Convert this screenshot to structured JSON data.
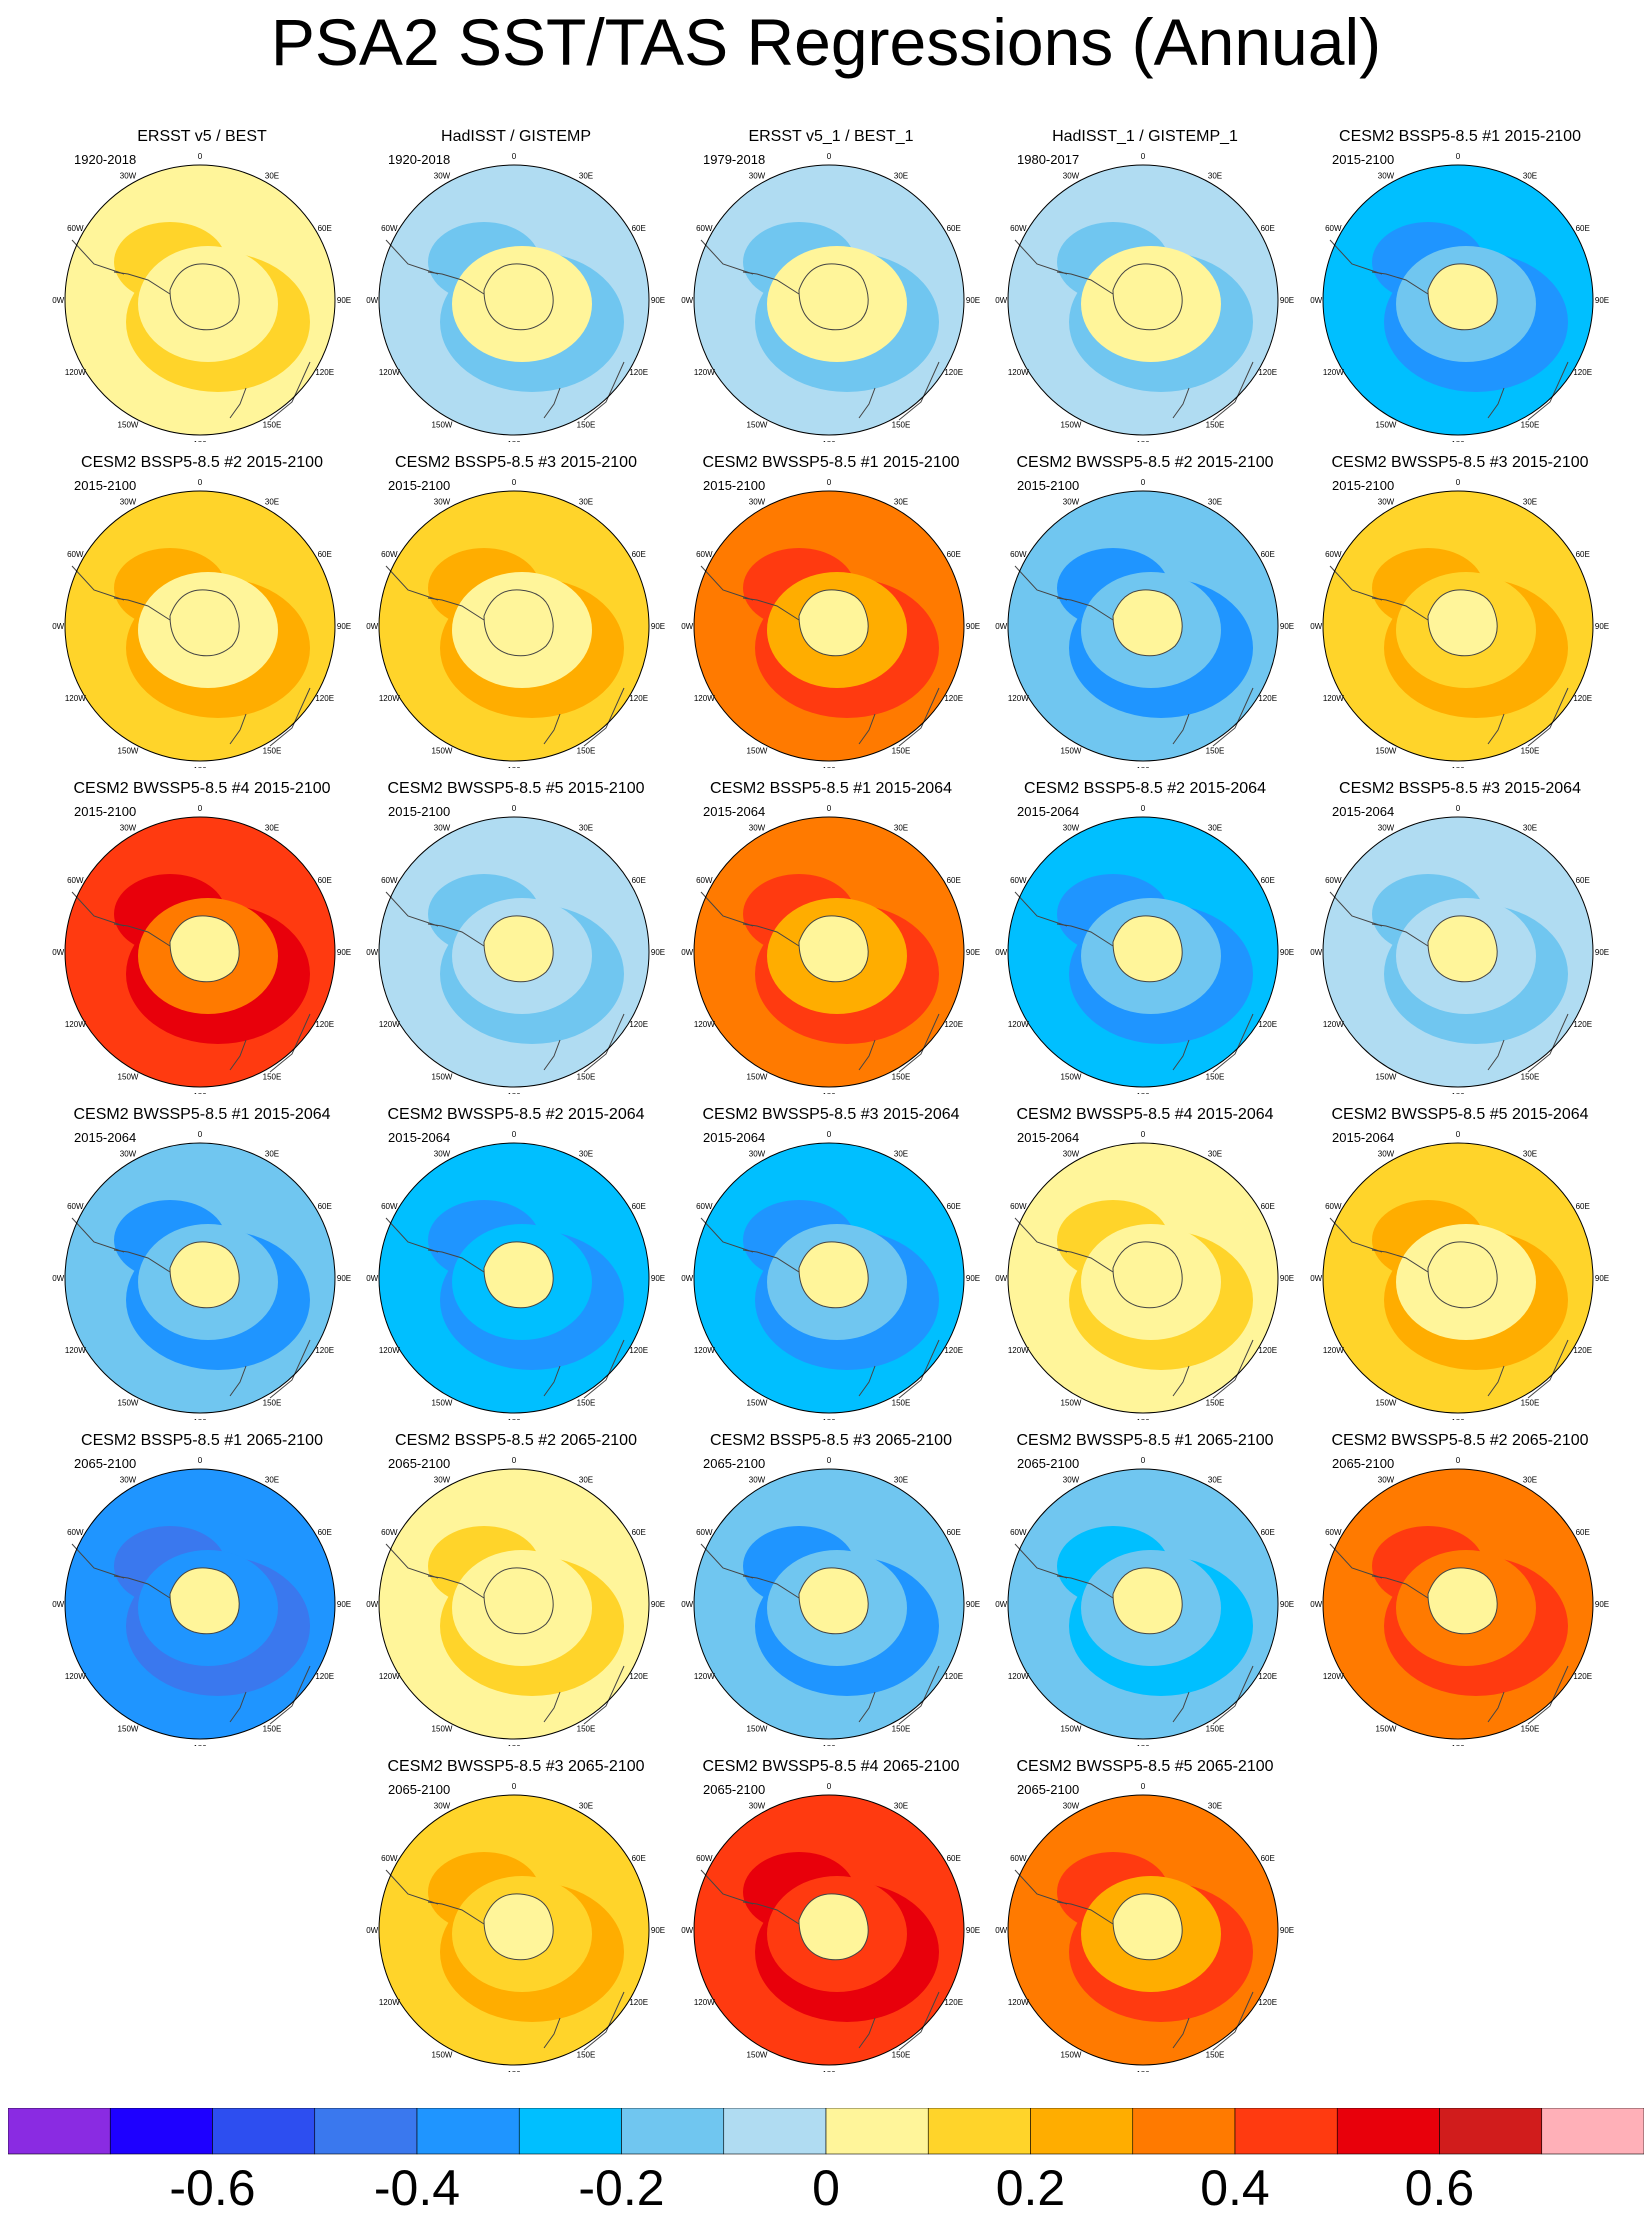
{
  "title": "PSA2 SST/TAS Regressions (Annual)",
  "lon_labels": [
    "0",
    "30E",
    "60E",
    "90E",
    "120E",
    "150E",
    "180",
    "150W",
    "120W",
    "90W",
    "60W",
    "30W"
  ],
  "chart_data": {
    "type": "heatmap",
    "projection": "south-polar-stereographic",
    "panels": [
      {
        "title": "ERSST v5 / BEST",
        "period": "1920-2018",
        "mean_value": 0.05
      },
      {
        "title": "HadISST / GISTEMP",
        "period": "1920-2018",
        "mean_value": -0.03
      },
      {
        "title": "ERSST v5_1 / BEST_1",
        "period": "1979-2018",
        "mean_value": -0.02
      },
      {
        "title": "HadISST_1 / GISTEMP_1",
        "period": "1980-2017",
        "mean_value": -0.01
      },
      {
        "title": "CESM2 BSSP5-8.5 #1 2015-2100",
        "period": "2015-2100",
        "mean_value": -0.25
      },
      {
        "title": "CESM2 BSSP5-8.5 #2 2015-2100",
        "period": "2015-2100",
        "mean_value": 0.1
      },
      {
        "title": "CESM2 BSSP5-8.5 #3 2015-2100",
        "period": "2015-2100",
        "mean_value": 0.15
      },
      {
        "title": "CESM2 BWSSP5-8.5 #1 2015-2100",
        "period": "2015-2100",
        "mean_value": 0.32
      },
      {
        "title": "CESM2 BWSSP5-8.5 #2 2015-2100",
        "period": "2015-2100",
        "mean_value": -0.2
      },
      {
        "title": "CESM2 BWSSP5-8.5 #3 2015-2100",
        "period": "2015-2100",
        "mean_value": 0.18
      },
      {
        "title": "CESM2 BWSSP5-8.5 #4 2015-2100",
        "period": "2015-2100",
        "mean_value": 0.42
      },
      {
        "title": "CESM2 BWSSP5-8.5 #5 2015-2100",
        "period": "2015-2100",
        "mean_value": -0.1
      },
      {
        "title": "CESM2 BSSP5-8.5 #1 2015-2064",
        "period": "2015-2064",
        "mean_value": 0.3
      },
      {
        "title": "CESM2 BSSP5-8.5 #2 2015-2064",
        "period": "2015-2064",
        "mean_value": -0.25
      },
      {
        "title": "CESM2 BSSP5-8.5 #3 2015-2064",
        "period": "2015-2064",
        "mean_value": -0.08
      },
      {
        "title": "CESM2 BWSSP5-8.5 #1 2015-2064",
        "period": "2015-2064",
        "mean_value": -0.2
      },
      {
        "title": "CESM2 BWSSP5-8.5 #2 2015-2064",
        "period": "2015-2064",
        "mean_value": -0.3
      },
      {
        "title": "CESM2 BWSSP5-8.5 #3 2015-2064",
        "period": "2015-2064",
        "mean_value": -0.25
      },
      {
        "title": "CESM2 BWSSP5-8.5 #4 2015-2064",
        "period": "2015-2064",
        "mean_value": 0.05
      },
      {
        "title": "CESM2 BWSSP5-8.5 #5 2015-2064",
        "period": "2015-2064",
        "mean_value": 0.15
      },
      {
        "title": "CESM2 BSSP5-8.5 #1 2065-2100",
        "period": "2065-2100",
        "mean_value": -0.38
      },
      {
        "title": "CESM2 BSSP5-8.5 #2 2065-2100",
        "period": "2065-2100",
        "mean_value": 0.05
      },
      {
        "title": "CESM2 BSSP5-8.5 #3 2065-2100",
        "period": "2065-2100",
        "mean_value": -0.2
      },
      {
        "title": "CESM2 BWSSP5-8.5 #1 2065-2100",
        "period": "2065-2100",
        "mean_value": -0.18
      },
      {
        "title": "CESM2 BWSSP5-8.5 #2 2065-2100",
        "period": "2065-2100",
        "mean_value": 0.35
      },
      {
        "title": "CESM2 BWSSP5-8.5 #3 2065-2100",
        "period": "2065-2100",
        "mean_value": 0.18
      },
      {
        "title": "CESM2 BWSSP5-8.5 #4 2065-2100",
        "period": "2065-2100",
        "mean_value": 0.45
      },
      {
        "title": "CESM2 BWSSP5-8.5 #5 2065-2100",
        "period": "2065-2100",
        "mean_value": 0.32
      }
    ],
    "colorbar": {
      "levels": [
        -0.7,
        -0.6,
        -0.5,
        -0.4,
        -0.3,
        -0.2,
        -0.1,
        0,
        0.1,
        0.2,
        0.3,
        0.4,
        0.5,
        0.6,
        0.7
      ],
      "colors": [
        "#8a2be2",
        "#1e00ff",
        "#2d4ef0",
        "#3a78ee",
        "#1f95ff",
        "#00bfff",
        "#70c6f0",
        "#b0dcf2",
        "#fff59a",
        "#ffd42a",
        "#ffad00",
        "#ff7a00",
        "#ff3a10",
        "#e8000b",
        "#d11c1c",
        "#ffb0b8"
      ],
      "tick_labels": [
        "-0.6",
        "-0.4",
        "-0.2",
        "0",
        "0.2",
        "0.4",
        "0.6"
      ]
    }
  }
}
